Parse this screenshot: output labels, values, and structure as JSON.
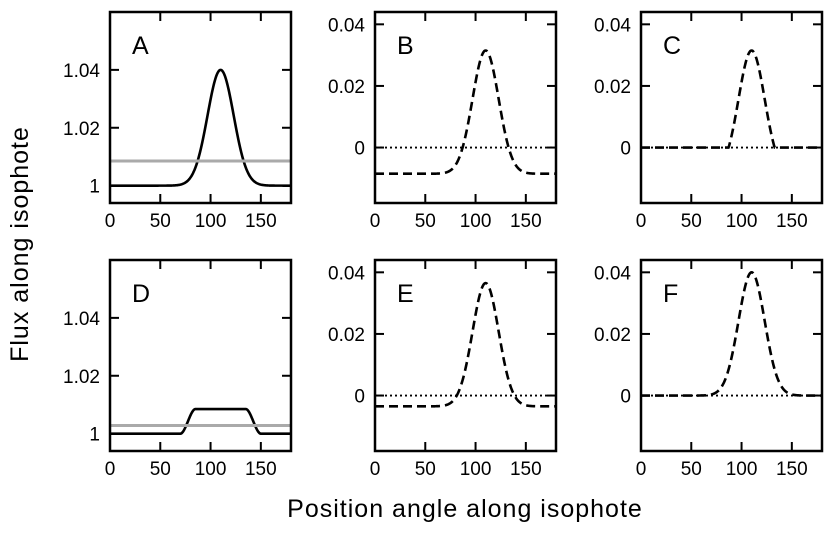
{
  "figure": {
    "ylabel": "Flux along isophote",
    "xlabel": "Position angle along isophote"
  },
  "chart_data": [
    {
      "panel": "A",
      "type": "line",
      "xlim": [
        0,
        180
      ],
      "ylim": [
        0.994,
        1.06
      ],
      "xticks": [
        0,
        50,
        100,
        150
      ],
      "xtick_labels": [
        "0",
        "50",
        "100",
        "150"
      ],
      "yticks": [
        1,
        1.02,
        1.04
      ],
      "ytick_labels": [
        "1",
        "1.02",
        "1.04"
      ],
      "series": [
        {
          "style": "solid",
          "color": "#000000",
          "kind": "gaussian",
          "baseline": 1.0,
          "amplitude": 0.04,
          "center": 110,
          "sigma": 13
        },
        {
          "style": "solid",
          "color": "#aaaaaa",
          "kind": "constant",
          "value": 1.0085
        }
      ]
    },
    {
      "panel": "B",
      "type": "line",
      "xlim": [
        0,
        180
      ],
      "ylim": [
        -0.018,
        0.044
      ],
      "xticks": [
        0,
        50,
        100,
        150
      ],
      "xtick_labels": [
        "0",
        "50",
        "100",
        "150"
      ],
      "yticks": [
        0,
        0.02,
        0.04
      ],
      "ytick_labels": [
        "0",
        "0.02",
        "0.04"
      ],
      "series": [
        {
          "style": "dashed",
          "color": "#000000",
          "kind": "gaussian",
          "baseline": -0.0085,
          "amplitude": 0.04,
          "center": 110,
          "sigma": 13
        },
        {
          "style": "dotted",
          "color": "#000000",
          "kind": "constant",
          "value": 0
        }
      ]
    },
    {
      "panel": "C",
      "type": "line",
      "xlim": [
        0,
        180
      ],
      "ylim": [
        -0.018,
        0.044
      ],
      "xticks": [
        0,
        50,
        100,
        150
      ],
      "xtick_labels": [
        "0",
        "50",
        "100",
        "150"
      ],
      "yticks": [
        0,
        0.02,
        0.04
      ],
      "ytick_labels": [
        "0",
        "0.02",
        "0.04"
      ],
      "series": [
        {
          "style": "dashed",
          "color": "#000000",
          "kind": "gaussian_clipped",
          "baseline": -0.0085,
          "amplitude": 0.04,
          "center": 110,
          "sigma": 13
        },
        {
          "style": "dotted",
          "color": "#000000",
          "kind": "constant",
          "value": 0
        }
      ]
    },
    {
      "panel": "D",
      "type": "line",
      "xlim": [
        0,
        180
      ],
      "ylim": [
        0.994,
        1.06
      ],
      "xticks": [
        0,
        50,
        100,
        150
      ],
      "xtick_labels": [
        "0",
        "50",
        "100",
        "150"
      ],
      "yticks": [
        1,
        1.02,
        1.04
      ],
      "ytick_labels": [
        "1",
        "1.02",
        "1.04"
      ],
      "series": [
        {
          "style": "solid",
          "color": "#000000",
          "kind": "plateau",
          "baseline": 1.0,
          "top": 1.0085,
          "rise_start": 70,
          "rise_end": 85,
          "fall_start": 135,
          "fall_end": 150
        },
        {
          "style": "solid",
          "color": "#aaaaaa",
          "kind": "constant",
          "value": 1.0028
        }
      ]
    },
    {
      "panel": "E",
      "type": "line",
      "xlim": [
        0,
        180
      ],
      "ylim": [
        -0.018,
        0.044
      ],
      "xticks": [
        0,
        50,
        100,
        150
      ],
      "xtick_labels": [
        "0",
        "50",
        "100",
        "150"
      ],
      "yticks": [
        0,
        0.02,
        0.04
      ],
      "ytick_labels": [
        "0",
        "0.02",
        "0.04"
      ],
      "series": [
        {
          "style": "dashed",
          "color": "#000000",
          "kind": "gaussian",
          "baseline": -0.0035,
          "amplitude": 0.04,
          "center": 110,
          "sigma": 13
        },
        {
          "style": "dotted",
          "color": "#000000",
          "kind": "constant",
          "value": 0
        }
      ]
    },
    {
      "panel": "F",
      "type": "line",
      "xlim": [
        0,
        180
      ],
      "ylim": [
        -0.018,
        0.044
      ],
      "xticks": [
        0,
        50,
        100,
        150
      ],
      "xtick_labels": [
        "0",
        "50",
        "100",
        "150"
      ],
      "yticks": [
        0,
        0.02,
        0.04
      ],
      "ytick_labels": [
        "0",
        "0.02",
        "0.04"
      ],
      "series": [
        {
          "style": "dashed",
          "color": "#000000",
          "kind": "gaussian",
          "baseline": 0.0,
          "amplitude": 0.04,
          "center": 110,
          "sigma": 13
        },
        {
          "style": "dotted",
          "color": "#000000",
          "kind": "constant",
          "value": 0
        }
      ]
    }
  ]
}
